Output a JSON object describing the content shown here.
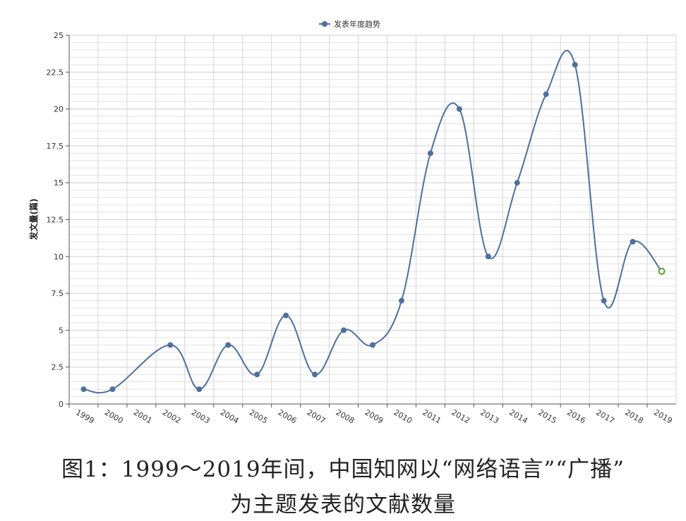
{
  "chart_data": {
    "type": "line",
    "title": "",
    "xlabel": "",
    "ylabel": "发文量(篇)",
    "legend": {
      "label": "发表年度趋势",
      "placement": "top-center"
    },
    "categories": [
      "1999",
      "2000",
      "2001",
      "2002",
      "2003",
      "2004",
      "2005",
      "2006",
      "2007",
      "2008",
      "2009",
      "2010",
      "2011",
      "2012",
      "2013",
      "2014",
      "2015",
      "2016",
      "2017",
      "2018",
      "2019"
    ],
    "series": [
      {
        "name": "发表年度趋势",
        "color": "#4e6f9e",
        "x": [
          "1999",
          "2000",
          "2002",
          "2003",
          "2004",
          "2005",
          "2006",
          "2007",
          "2008",
          "2009",
          "2010",
          "2011",
          "2012",
          "2013",
          "2014",
          "2015",
          "2016",
          "2017",
          "2018",
          "2019"
        ],
        "values": [
          1,
          1,
          4,
          1,
          4,
          2,
          6,
          2,
          5,
          4,
          7,
          17,
          20,
          10,
          15,
          21,
          23,
          7,
          11,
          9
        ],
        "predicted_point_color": "#5aa02c"
      }
    ],
    "yticks": [
      "0",
      "2.5",
      "5",
      "7.5",
      "10",
      "12.5",
      "15",
      "17.5",
      "20",
      "22.5",
      "25"
    ],
    "ylim": [
      0,
      25
    ],
    "grid": true,
    "smooth": true
  },
  "caption": {
    "line1": "图1：1999～2019年间，中国知网以“网络语言”“广播”",
    "line2": "为主题发表的文献数量"
  }
}
